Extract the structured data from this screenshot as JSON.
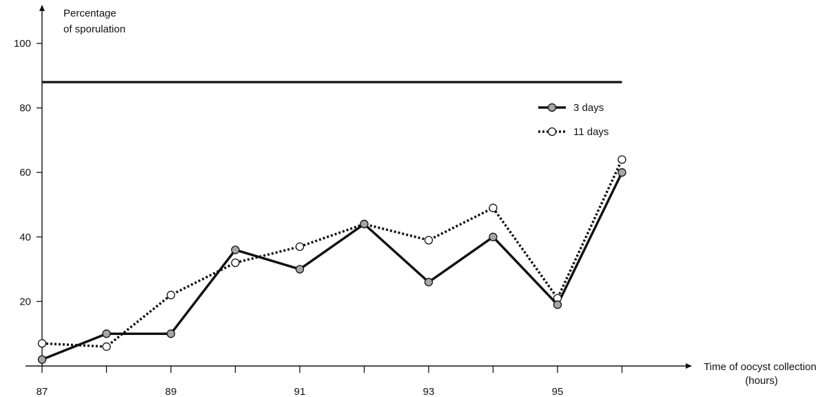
{
  "chart_data": {
    "type": "line",
    "ylabel_lines": [
      "Percentage",
      "of sporulation"
    ],
    "xlabel_lines": [
      "Time of oocyst collection",
      "(hours)"
    ],
    "x_ticks": [
      87,
      88,
      89,
      90,
      91,
      92,
      93,
      94,
      95,
      96
    ],
    "x_tick_labels": [
      "87",
      "",
      "89",
      "",
      "91",
      "",
      "93",
      "",
      "95",
      ""
    ],
    "y_ticks": [
      20,
      40,
      60,
      80,
      100
    ],
    "y_tick_labels": [
      "20",
      "40",
      "60",
      "80",
      "100"
    ],
    "xlim": [
      87,
      96
    ],
    "ylim": [
      0,
      100
    ],
    "reference_line": {
      "y": 88,
      "x_range": [
        87,
        96
      ]
    },
    "legend_position": "top-right",
    "series": [
      {
        "name": "3 days",
        "style": "solid",
        "marker_color": "#a6a6a6",
        "x": [
          87,
          88,
          89,
          90,
          91,
          92,
          93,
          94,
          95,
          96
        ],
        "y": [
          2,
          10,
          10,
          36,
          30,
          44,
          26,
          40,
          19,
          60
        ]
      },
      {
        "name": "11 days",
        "style": "dotted",
        "marker_color": "#ffffff",
        "x": [
          87,
          88,
          89,
          90,
          91,
          92,
          93,
          94,
          95,
          96
        ],
        "y": [
          7,
          6,
          22,
          32,
          37,
          44,
          39,
          49,
          21,
          64
        ]
      }
    ]
  }
}
